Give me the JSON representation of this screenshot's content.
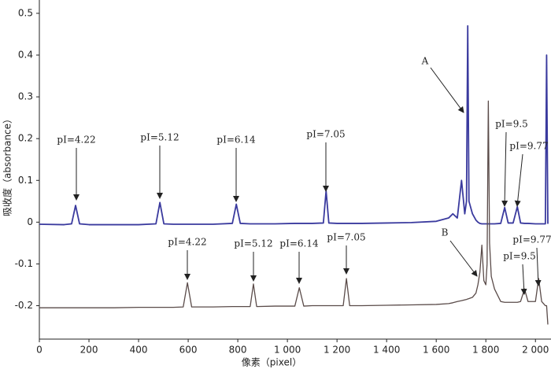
{
  "chart_data": {
    "type": "line",
    "x_label": "像素（pixel）",
    "y_label": "吸收度（absorbance）",
    "xlim": [
      0,
      2050
    ],
    "ylim": [
      -0.28,
      0.53
    ],
    "xticks": [
      0,
      200,
      400,
      600,
      800,
      {
        "value": 1000,
        "label": "1 000"
      },
      {
        "value": 1200,
        "label": "1 200"
      },
      {
        "value": 1400,
        "label": "1 400"
      },
      {
        "value": 1600,
        "label": "1 600"
      },
      {
        "value": 1800,
        "label": "1 800"
      },
      {
        "value": 2000,
        "label": "2 000"
      }
    ],
    "yticks": [
      -0.2,
      -0.1,
      0,
      0.1,
      0.2,
      0.3,
      0.4,
      0.5
    ],
    "grid": false,
    "x": [
      0,
      100,
      130,
      146,
      162,
      200,
      300,
      400,
      470,
      486,
      502,
      540,
      580,
      597,
      614,
      700,
      778,
      794,
      810,
      850,
      863,
      876,
      950,
      1030,
      1048,
      1066,
      1100,
      1145,
      1156,
      1167,
      1200,
      1225,
      1238,
      1251,
      1300,
      1400,
      1500,
      1600,
      1650,
      1667,
      1685,
      1702,
      1715,
      1722,
      1727,
      1732,
      1746,
      1760,
      1768,
      1776,
      1784,
      1792,
      1800,
      1805,
      1810,
      1815,
      1822,
      1835,
      1860,
      1876,
      1890,
      1910,
      1927,
      1940,
      1956,
      1970,
      2000,
      2013,
      2025,
      2040,
      2045,
      2050
    ],
    "series": [
      {
        "color": "#3a3a9e",
        "values": [
          -0.005,
          -0.006,
          -0.004,
          0.04,
          -0.004,
          -0.006,
          -0.006,
          -0.006,
          -0.004,
          0.047,
          -0.004,
          -0.005,
          -0.005,
          -0.005,
          -0.005,
          -0.005,
          -0.003,
          0.043,
          -0.003,
          -0.004,
          -0.004,
          -0.004,
          -0.004,
          -0.003,
          -0.003,
          -0.003,
          -0.003,
          -0.002,
          0.075,
          -0.002,
          -0.003,
          -0.003,
          -0.003,
          -0.003,
          -0.003,
          -0.002,
          -0.001,
          0.002,
          0.01,
          0.02,
          0.01,
          0.1,
          0.02,
          0.05,
          0.47,
          0.05,
          0.02,
          0.005,
          0,
          -0.003,
          -0.004,
          -0.004,
          -0.004,
          -0.004,
          -0.004,
          -0.004,
          -0.004,
          -0.004,
          -0.003,
          0.035,
          -0.002,
          -0.002,
          0.037,
          -0.002,
          -0.003,
          -0.003,
          -0.004,
          -0.004,
          -0.004,
          -0.004,
          0.4,
          -0.004
        ]
      },
      {
        "color": "#5a4b49",
        "values": [
          -0.205,
          -0.205,
          -0.205,
          -0.205,
          -0.205,
          -0.205,
          -0.205,
          -0.204,
          -0.204,
          -0.204,
          -0.204,
          -0.204,
          -0.203,
          -0.145,
          -0.203,
          -0.203,
          -0.202,
          -0.202,
          -0.202,
          -0.202,
          -0.148,
          -0.202,
          -0.201,
          -0.201,
          -0.157,
          -0.201,
          -0.2,
          -0.2,
          -0.2,
          -0.2,
          -0.2,
          -0.2,
          -0.135,
          -0.2,
          -0.2,
          -0.199,
          -0.198,
          -0.197,
          -0.195,
          -0.193,
          -0.19,
          -0.188,
          -0.186,
          -0.185,
          -0.184,
          -0.183,
          -0.18,
          -0.17,
          -0.15,
          -0.12,
          -0.055,
          -0.14,
          -0.15,
          -0.1,
          0.29,
          -0.05,
          -0.13,
          -0.16,
          -0.19,
          -0.192,
          -0.192,
          -0.192,
          -0.192,
          -0.19,
          -0.16,
          -0.19,
          -0.19,
          -0.135,
          -0.19,
          -0.2,
          -0.2,
          -0.245
        ]
      }
    ],
    "annotations": [
      "pI=4.22",
      "pI=5.12",
      "pI=6.14",
      "pI=7.05",
      "A",
      "pI=9.5",
      "pI=9.77",
      "pI=4.22",
      "pI=5.12",
      "pI=6.14",
      "pI=7.05",
      "B",
      "pI=9.5",
      "pI=9.77"
    ]
  }
}
